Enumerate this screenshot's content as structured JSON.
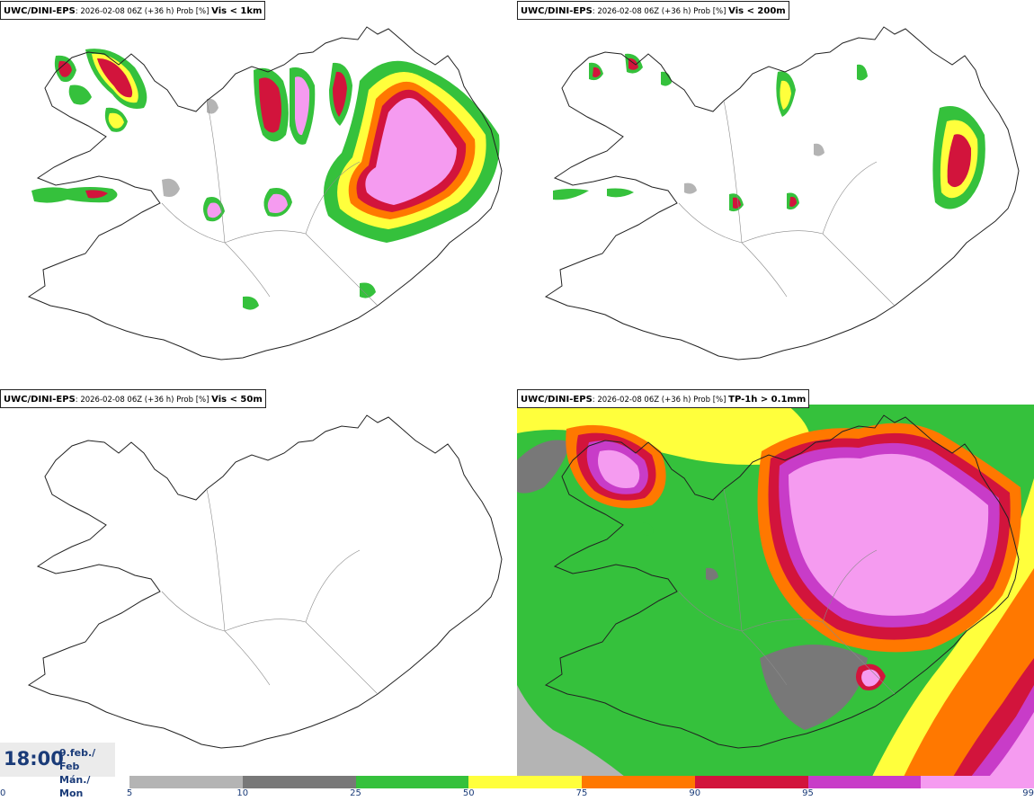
{
  "panels": [
    {
      "source": "UWC/DINI-EPS",
      "run": ": 2026-02-08 06Z (+36 h) Prob [%] ",
      "param": "Vis < 1km"
    },
    {
      "source": "UWC/DINI-EPS",
      "run": ": 2026-02-08 06Z (+36 h) Prob [%] ",
      "param": "Vis < 200m"
    },
    {
      "source": "UWC/DINI-EPS",
      "run": ": 2026-02-08 06Z (+36 h) Prob [%] ",
      "param": "Vis < 50m"
    },
    {
      "source": "UWC/DINI-EPS",
      "run": ": 2026-02-08 06Z (+36 h) Prob [%] ",
      "param": "TP-1h > 0.1mm"
    }
  ],
  "valid_time": {
    "time": "18:00",
    "date_line1": "9.feb./ Feb",
    "date_line2": "Mán./ Mon"
  },
  "legend": {
    "ticks": [
      "0",
      "5",
      "10",
      "25",
      "50",
      "75",
      "90",
      "95",
      "99"
    ],
    "colors": [
      "#b4b4b4",
      "#787878",
      "#35c13c",
      "#ffff3c",
      "#ff7800",
      "#d2143c",
      "#c83cc8",
      "#f59bf0"
    ]
  },
  "palette": {
    "coast": "#222222",
    "border": "#8a8a8a",
    "light_gray": "#b4b4b4",
    "dark_gray": "#787878",
    "green": "#35c13c",
    "yellow": "#ffff3c",
    "orange": "#ff7800",
    "red": "#d2143c",
    "magenta": "#c83cc8",
    "pink": "#f59bf0"
  }
}
